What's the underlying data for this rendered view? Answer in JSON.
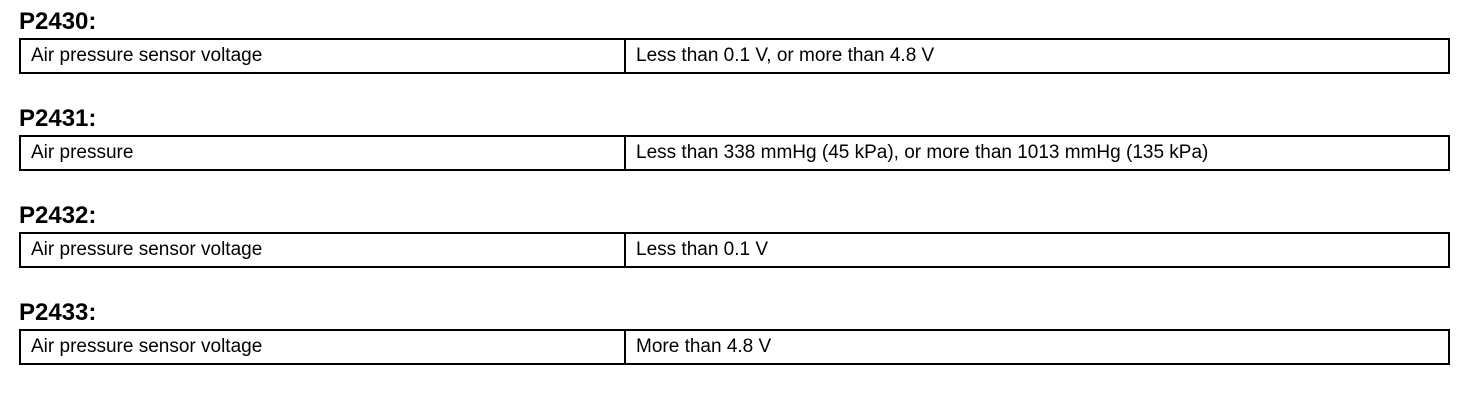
{
  "sections": [
    {
      "title": "P2430:",
      "rows": [
        [
          "Air pressure sensor voltage",
          "Less than 0.1 V, or more than 4.8 V"
        ]
      ]
    },
    {
      "title": "P2431:",
      "rows": [
        [
          "Air pressure",
          "Less than 338 mmHg (45 kPa), or more than 1013 mmHg (135 kPa)"
        ]
      ]
    },
    {
      "title": "P2432:",
      "rows": [
        [
          "Air pressure sensor voltage",
          "Less than 0.1 V"
        ]
      ]
    },
    {
      "title": "P2433:",
      "rows": [
        [
          "Air pressure sensor voltage",
          "More than 4.8 V"
        ]
      ]
    }
  ]
}
